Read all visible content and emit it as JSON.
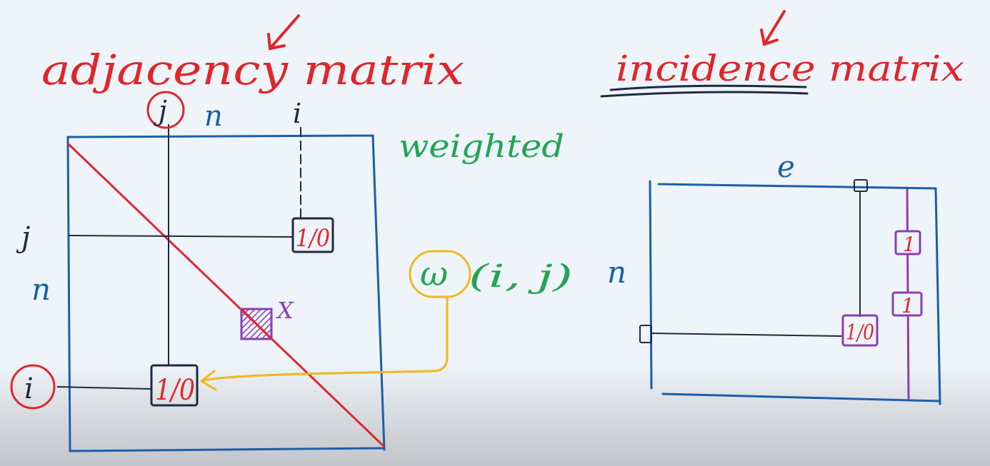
{
  "titles": {
    "adjacency": "adjacency matrix",
    "incidence": "incidence matrix"
  },
  "adjacency": {
    "col_j": "j",
    "col_n": "n",
    "col_i": "i",
    "row_j": "j",
    "row_n": "n",
    "row_i": "i",
    "cell_ji": "1/0",
    "cell_ij": "1/0",
    "diagonal_mark": "X",
    "weighted_label": "weighted",
    "weight_fn_w": "ω",
    "weight_fn_args": "(i, j)"
  },
  "incidence": {
    "col_e": "e",
    "row_n": "n",
    "cell": "1/0",
    "col_mark_1": "1",
    "col_mark_2": "1"
  },
  "colors": {
    "red": "#e0262b",
    "blue": "#1d5ea8",
    "dark": "#1e2a44",
    "green": "#23a455",
    "purple": "#8a3fb5",
    "yellow": "#f0b81c"
  }
}
